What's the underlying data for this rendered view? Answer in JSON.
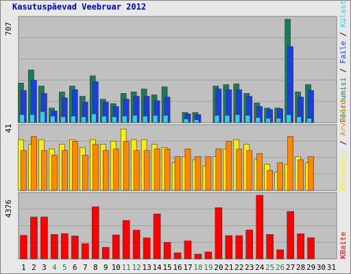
{
  "title": "Kasutuspäevad Veebruar 2012",
  "colors": {
    "panel_bg": "#c0c0c0",
    "visits": "#1a7a5a",
    "pages": "#1a3fdd",
    "hits": "#33ccee",
    "bandwidth_k": "#ff0000",
    "weekend_label": "#1a7a5a",
    "weekday_label": "#000000"
  },
  "right_labels": {
    "top": {
      "parts": [
        {
          "text": "Pöördumisi",
          "color": "#1a7a5a"
        },
        {
          "text": " / ",
          "color": "#000000"
        },
        {
          "text": "Faile",
          "color": "#1a3fdd"
        },
        {
          "text": " / ",
          "color": "#000000"
        },
        {
          "text": "Külastajad",
          "color": "#33ccee"
        }
      ]
    },
    "middle": {
      "parts": [
        {
          "text": "Külastaji",
          "color": "#ffee00"
        },
        {
          "text": " / ",
          "color": "#000000"
        },
        {
          "text": "Arvutaid",
          "color": "#ff8800"
        }
      ]
    },
    "bottom": {
      "parts": [
        {
          "text": "KBaite",
          "color": "#ff0000"
        }
      ]
    }
  },
  "chart_data": [
    {
      "type": "bar",
      "panel": "top",
      "ymax_label": "707",
      "ylim": [
        0,
        707
      ],
      "categories": [
        "1",
        "2",
        "3",
        "4",
        "5",
        "6",
        "7",
        "8",
        "9",
        "10",
        "11",
        "12",
        "13",
        "14",
        "15",
        "16",
        "17",
        "18",
        "19",
        "20",
        "21",
        "22",
        "23",
        "24",
        "25",
        "26",
        "27",
        "28",
        "29",
        "30",
        "31"
      ],
      "series": [
        {
          "name": "Pöördumisi",
          "values": [
            270,
            360,
            250,
            100,
            210,
            250,
            180,
            320,
            160,
            130,
            200,
            210,
            230,
            190,
            245,
            0,
            70,
            70,
            0,
            250,
            260,
            265,
            200,
            135,
            100,
            100,
            707,
            210,
            260,
            0,
            0
          ]
        },
        {
          "name": "Faile",
          "values": [
            220,
            290,
            200,
            80,
            170,
            225,
            140,
            280,
            140,
            110,
            160,
            180,
            180,
            150,
            175,
            0,
            60,
            55,
            0,
            230,
            225,
            225,
            180,
            110,
            90,
            95,
            520,
            175,
            220,
            0,
            0
          ]
        },
        {
          "name": "Külastajad",
          "values": [
            55,
            55,
            75,
            45,
            40,
            45,
            40,
            60,
            45,
            40,
            45,
            50,
            45,
            50,
            50,
            0,
            25,
            20,
            0,
            50,
            50,
            55,
            50,
            35,
            30,
            30,
            55,
            40,
            30,
            0,
            0
          ]
        }
      ]
    },
    {
      "type": "bar",
      "panel": "middle",
      "ymax_label": "41",
      "ylim": [
        0,
        41
      ],
      "categories": [
        "1",
        "2",
        "3",
        "4",
        "5",
        "6",
        "7",
        "8",
        "9",
        "10",
        "11",
        "12",
        "13",
        "14",
        "15",
        "16",
        "17",
        "18",
        "19",
        "20",
        "21",
        "22",
        "23",
        "24",
        "25",
        "26",
        "27",
        "28",
        "29",
        "30",
        "31"
      ],
      "series": [
        {
          "name": "Külastajad",
          "values": [
            33,
            30,
            33,
            27,
            30,
            33,
            28,
            33,
            30,
            32,
            40,
            33,
            33,
            30,
            28,
            18,
            22,
            20,
            16,
            22,
            27,
            33,
            30,
            20,
            17,
            12,
            17,
            22,
            18,
            0,
            0
          ]
        },
        {
          "name": "Arvutaid",
          "values": [
            26,
            35,
            26,
            23,
            26,
            32,
            23,
            30,
            26,
            27,
            32,
            26,
            26,
            27,
            27,
            22,
            27,
            22,
            22,
            27,
            32,
            27,
            26,
            24,
            13,
            18,
            35,
            20,
            22,
            0,
            0
          ]
        }
      ]
    },
    {
      "type": "bar",
      "panel": "bottom",
      "ymax_label": "4376",
      "ylim": [
        0,
        4376
      ],
      "categories": [
        "1",
        "2",
        "3",
        "4",
        "5",
        "6",
        "7",
        "8",
        "9",
        "10",
        "11",
        "12",
        "13",
        "14",
        "15",
        "16",
        "17",
        "18",
        "19",
        "20",
        "21",
        "22",
        "23",
        "24",
        "25",
        "26",
        "27",
        "28",
        "29",
        "30",
        "31"
      ],
      "series": [
        {
          "name": "KBaite",
          "values": [
            1620,
            2880,
            2880,
            1680,
            1740,
            1580,
            1050,
            3580,
            800,
            1650,
            2640,
            1980,
            1450,
            3090,
            1140,
            420,
            1240,
            330,
            480,
            3520,
            1600,
            1600,
            1990,
            4376,
            1680,
            630,
            3260,
            1730,
            1460,
            0,
            0
          ]
        }
      ]
    }
  ],
  "x_axis": {
    "labels": [
      "1",
      "2",
      "3",
      "4",
      "5",
      "6",
      "7",
      "8",
      "9",
      "10",
      "11",
      "12",
      "13",
      "14",
      "15",
      "16",
      "17",
      "18",
      "19",
      "20",
      "21",
      "22",
      "23",
      "24",
      "25",
      "26",
      "27",
      "28",
      "29",
      "30",
      "31"
    ],
    "weekends": [
      "4",
      "5",
      "11",
      "12",
      "18",
      "19",
      "25",
      "26"
    ]
  }
}
